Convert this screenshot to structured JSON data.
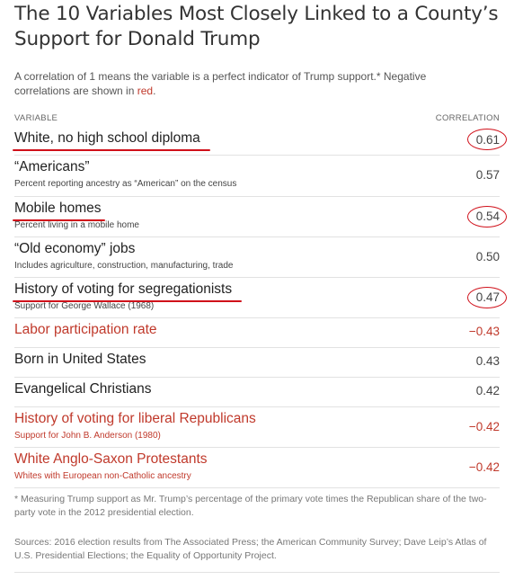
{
  "title": "The 10 Variables Most Closely Linked to a County’s Support for Donald Trump",
  "subtitle": {
    "text": "A correlation of 1 means the variable is a perfect indicator of Trump support.* Negative correlations are shown in ",
    "red_word": "red",
    "end": "."
  },
  "headers": {
    "variable": "VARIABLE",
    "correlation": "CORRELATION"
  },
  "colors": {
    "negative": "#c0392b",
    "annotation": "#d0101a",
    "text": "#222222"
  },
  "chart_data": {
    "type": "table",
    "columns": [
      "VARIABLE",
      "CORRELATION"
    ],
    "rows": [
      {
        "name": "White, no high school diploma",
        "desc": "",
        "value": "0.61",
        "negative": false,
        "underlined": true,
        "circled": true
      },
      {
        "name": "“Americans”",
        "desc": "Percent reporting ancestry as “American” on the census",
        "value": "0.57",
        "negative": false,
        "underlined": false,
        "circled": false
      },
      {
        "name": "Mobile homes",
        "desc": "Percent living in a mobile home",
        "value": "0.54",
        "negative": false,
        "underlined": true,
        "circled": true
      },
      {
        "name": "“Old economy” jobs",
        "desc": "Includes agriculture, construction, manufacturing, trade",
        "value": "0.50",
        "negative": false,
        "underlined": false,
        "circled": false
      },
      {
        "name": "History of voting for segregationists",
        "desc": "Support for George Wallace (1968)",
        "value": "0.47",
        "negative": false,
        "underlined": true,
        "circled": true
      },
      {
        "name": "Labor participation rate",
        "desc": "",
        "value": "−0.43",
        "negative": true,
        "underlined": false,
        "circled": false
      },
      {
        "name": "Born in United States",
        "desc": "",
        "value": "0.43",
        "negative": false,
        "underlined": false,
        "circled": false
      },
      {
        "name": "Evangelical Christians",
        "desc": "",
        "value": "0.42",
        "negative": false,
        "underlined": false,
        "circled": false
      },
      {
        "name": "History of voting for liberal Republicans",
        "desc": "Support for John B. Anderson (1980)",
        "value": "−0.42",
        "negative": true,
        "underlined": false,
        "circled": false
      },
      {
        "name": "White Anglo-Saxon Protestants",
        "desc": "Whites with European non-Catholic ancestry",
        "value": "−0.42",
        "negative": true,
        "underlined": false,
        "circled": false
      }
    ]
  },
  "footnote": "* Measuring Trump support as Mr. Trump’s percentage of the primary vote times the Republican share of the two-party vote in the 2012 presidential election.",
  "sources": "Sources: 2016 election results from The Associated Press; the American Community Survey; Dave Leip’s Atlas of U.S. Presidential Elections; the Equality of Opportunity Project."
}
